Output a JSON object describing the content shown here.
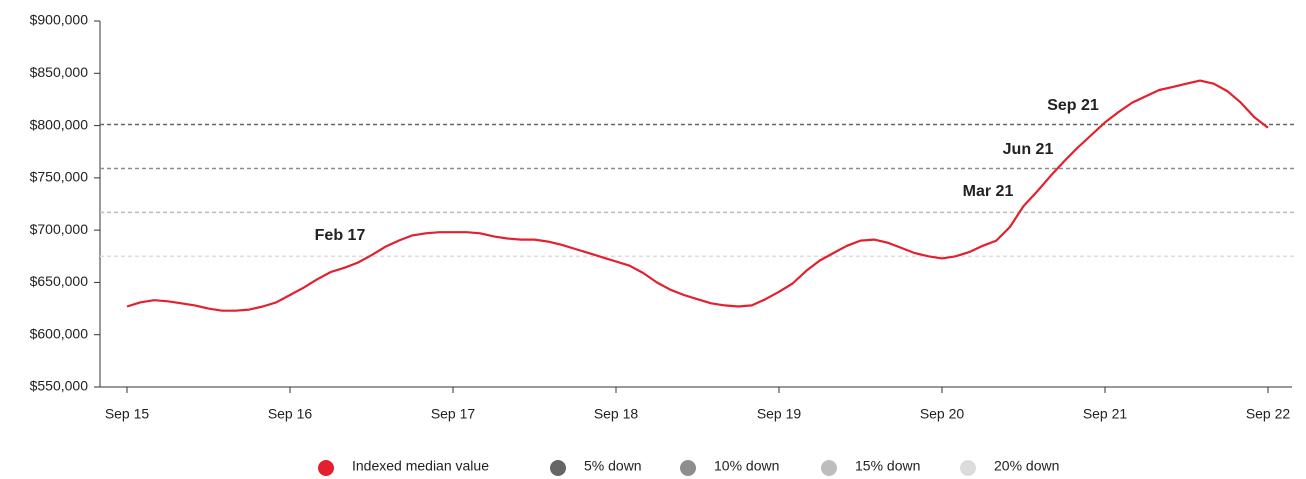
{
  "chart_data": {
    "type": "line",
    "categories": [
      "Sep 15",
      null,
      null,
      null,
      null,
      null,
      null,
      null,
      null,
      null,
      null,
      null,
      "Sep 16",
      null,
      null,
      null,
      null,
      null,
      null,
      null,
      null,
      null,
      null,
      null,
      "Sep 17",
      null,
      null,
      null,
      null,
      null,
      null,
      null,
      null,
      null,
      null,
      null,
      "Sep 18",
      null,
      null,
      null,
      null,
      null,
      null,
      null,
      null,
      null,
      null,
      null,
      "Sep 19",
      null,
      null,
      null,
      null,
      null,
      null,
      null,
      null,
      null,
      null,
      null,
      "Sep 20",
      null,
      null,
      null,
      null,
      null,
      null,
      null,
      null,
      null,
      null,
      null,
      "Sep 21",
      null,
      null,
      null,
      null,
      null,
      null,
      null,
      null,
      null,
      null,
      null,
      "Sep 22"
    ],
    "series": [
      {
        "name": "Indexed median value",
        "color": "#e3202e",
        "values": [
          627000,
          631000,
          633000,
          632000,
          630000,
          628000,
          625000,
          623000,
          623000,
          624000,
          627000,
          631000,
          638000,
          645000,
          653000,
          660000,
          664000,
          669000,
          676000,
          684000,
          690000,
          695000,
          697000,
          698000,
          698000,
          698000,
          697000,
          694000,
          692000,
          691000,
          691000,
          689000,
          686000,
          682000,
          678000,
          674000,
          670000,
          666000,
          659000,
          650000,
          643000,
          638000,
          634000,
          630000,
          628000,
          627000,
          628000,
          634000,
          641000,
          649000,
          661000,
          671000,
          678000,
          685000,
          690000,
          691000,
          688000,
          683000,
          678000,
          675000,
          673000,
          675000,
          679000,
          685000,
          690000,
          703000,
          723000,
          737000,
          752000,
          766000,
          779000,
          791000,
          803000,
          813000,
          822000,
          828000,
          834000,
          837000,
          840000,
          843000,
          840000,
          833000,
          822000,
          808000,
          798000
        ]
      }
    ],
    "reference_lines": [
      {
        "name": "5% down",
        "value": 801000,
        "color": "#666666"
      },
      {
        "name": "10% down",
        "value": 759000,
        "color": "#8e8e8e"
      },
      {
        "name": "15% down",
        "value": 717000,
        "color": "#bdbdbd"
      },
      {
        "name": "20% down",
        "value": 675000,
        "color": "#dcdcdc"
      }
    ],
    "annotations": [
      "Feb 17",
      "Mar 21",
      "Jun 21",
      "Sep 21"
    ],
    "ylim": [
      550000,
      900000
    ],
    "yticks": [
      {
        "value": 550000,
        "label": "$550,000"
      },
      {
        "value": 600000,
        "label": "$600,000"
      },
      {
        "value": 650000,
        "label": "$650,000"
      },
      {
        "value": 700000,
        "label": "$700,000"
      },
      {
        "value": 750000,
        "label": "$750,000"
      },
      {
        "value": 800000,
        "label": "$800,000"
      },
      {
        "value": 850000,
        "label": "$850,000"
      },
      {
        "value": 900000,
        "label": "$900,000"
      }
    ],
    "legend": "bottom"
  }
}
